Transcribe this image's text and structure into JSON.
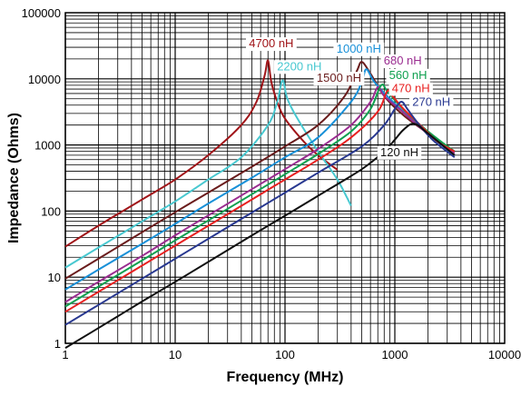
{
  "chart_data": {
    "type": "line",
    "xlabel": "Frequency (MHz)",
    "ylabel": "Impedance (Ohms)",
    "x_scale": "log",
    "y_scale": "log",
    "xlim": [
      1,
      10000
    ],
    "ylim": [
      1,
      100000
    ],
    "x_ticks": [
      "1",
      "10",
      "100",
      "1000",
      "10000"
    ],
    "y_ticks": [
      "1",
      "10",
      "100",
      "1000",
      "10000",
      "100000"
    ],
    "grid": true,
    "series": [
      {
        "name": "4700 nH",
        "color": "#a01418",
        "x": [
          1,
          2,
          5,
          10,
          20,
          40,
          55,
          65,
          70,
          75,
          85,
          100,
          150,
          200,
          300
        ],
        "y": [
          29,
          60,
          150,
          300,
          700,
          2000,
          4500,
          11000,
          19000,
          9000,
          4500,
          2500,
          1100,
          700,
          420
        ]
      },
      {
        "name": "2200 nH",
        "color": "#48c8d0",
        "x": [
          1,
          2,
          5,
          10,
          20,
          40,
          70,
          85,
          95,
          105,
          130,
          200,
          300,
          400
        ],
        "y": [
          14,
          28,
          70,
          140,
          300,
          650,
          2000,
          4500,
          9500,
          5000,
          2500,
          800,
          300,
          120
        ]
      },
      {
        "name": "1500 nH",
        "color": "#6a1c1c",
        "x": [
          1,
          2,
          5,
          10,
          20,
          50,
          100,
          200,
          350,
          450,
          500,
          600,
          800,
          1200,
          2000,
          3500
        ],
        "y": [
          9.5,
          19,
          48,
          96,
          190,
          470,
          950,
          2000,
          5500,
          13000,
          18000,
          12000,
          5500,
          2800,
          1500,
          750
        ]
      },
      {
        "name": "1000 nH",
        "color": "#1890d8",
        "x": [
          1,
          2,
          5,
          10,
          20,
          50,
          100,
          200,
          400,
          500,
          550,
          650,
          900,
          1400,
          2200,
          3500
        ],
        "y": [
          6.5,
          13,
          32,
          64,
          130,
          320,
          650,
          1300,
          4500,
          9000,
          14000,
          9000,
          5000,
          2500,
          1300,
          700
        ]
      },
      {
        "name": "680 nH",
        "color": "#9a2c90",
        "x": [
          1,
          2,
          5,
          10,
          20,
          50,
          100,
          200,
          400,
          600,
          700,
          800,
          1100,
          1600,
          2500,
          3500
        ],
        "y": [
          4.2,
          8.5,
          21,
          43,
          86,
          215,
          430,
          870,
          2000,
          4500,
          7500,
          5500,
          3500,
          2000,
          1100,
          750
        ]
      },
      {
        "name": "560 nH",
        "color": "#10a050",
        "x": [
          1,
          2,
          5,
          10,
          20,
          50,
          100,
          200,
          400,
          600,
          750,
          850,
          1100,
          1600,
          2500,
          3500
        ],
        "y": [
          3.6,
          7.2,
          18,
          36,
          72,
          180,
          360,
          730,
          1600,
          3500,
          8000,
          6500,
          4000,
          2200,
          1200,
          800
        ]
      },
      {
        "name": "470 nH",
        "color": "#e82020",
        "x": [
          1,
          2,
          5,
          10,
          20,
          50,
          100,
          200,
          400,
          700,
          850,
          950,
          1200,
          1700,
          2500,
          3500
        ],
        "y": [
          3.0,
          6.0,
          15,
          30,
          60,
          150,
          300,
          600,
          1300,
          3200,
          6500,
          5500,
          3500,
          2000,
          1100,
          800
        ]
      },
      {
        "name": "270 nH",
        "color": "#283890",
        "x": [
          1,
          2,
          5,
          10,
          20,
          50,
          100,
          200,
          500,
          800,
          1000,
          1150,
          1300,
          1600,
          2200,
          3500
        ],
        "y": [
          1.9,
          3.8,
          9.5,
          19,
          38,
          95,
          190,
          380,
          950,
          2000,
          3500,
          4500,
          3500,
          2200,
          1200,
          650
        ]
      },
      {
        "name": "120 nH",
        "color": "#101010",
        "x": [
          1,
          2,
          5,
          10,
          20,
          50,
          100,
          200,
          500,
          800,
          1000,
          1200,
          1500,
          2000,
          3500
        ],
        "y": [
          0.85,
          1.7,
          4.3,
          8.5,
          17,
          43,
          85,
          170,
          430,
          800,
          1200,
          1700,
          2100,
          1500,
          700
        ]
      }
    ]
  }
}
